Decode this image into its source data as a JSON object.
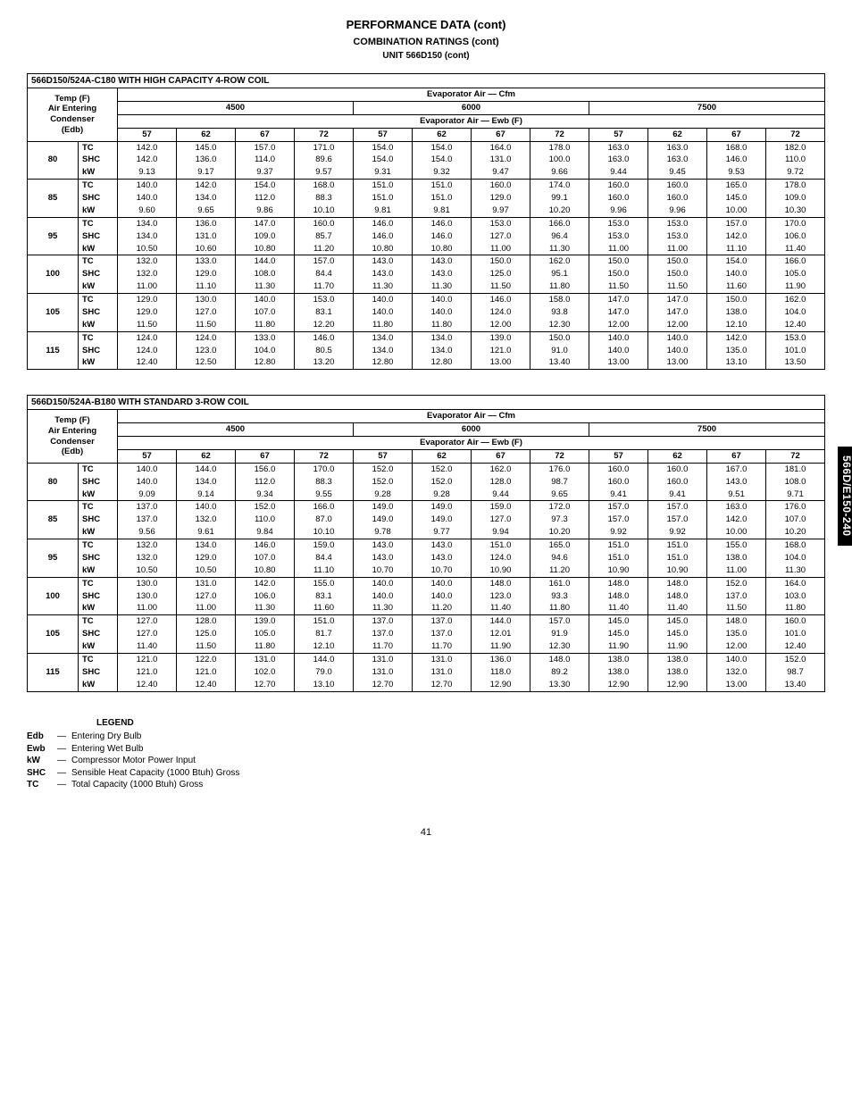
{
  "header": {
    "page_title": "PERFORMANCE DATA (cont)",
    "subtitle": "COMBINATION RATINGS (cont)",
    "unit_title": "UNIT 566D150 (cont)"
  },
  "side_tab": "566D/E150-240",
  "page_number": "41",
  "legend": {
    "title": "LEGEND",
    "items": [
      {
        "key": "Edb",
        "desc": "Entering Dry Bulb"
      },
      {
        "key": "Ewb",
        "desc": "Entering Wet Bulb"
      },
      {
        "key": "kW",
        "desc": "Compressor Motor Power Input"
      },
      {
        "key": "SHC",
        "desc": "Sensible Heat Capacity (1000 Btuh) Gross"
      },
      {
        "key": "TC",
        "desc": "Total Capacity (1000 Btuh) Gross"
      }
    ]
  },
  "common_headers": {
    "left_header": "Temp (F)\nAir Entering\nCondenser\n(Edb)",
    "evap_air_cfm": "Evaporator Air — Cfm",
    "evap_air_ewb": "Evaporator Air — Ewb (F)",
    "cfm_groups": [
      "4500",
      "6000",
      "7500"
    ],
    "ewb_cols": [
      "57",
      "62",
      "67",
      "72",
      "57",
      "62",
      "67",
      "72",
      "57",
      "62",
      "67",
      "72"
    ],
    "metrics": [
      "TC",
      "SHC",
      "kW"
    ]
  },
  "tables": [
    {
      "label": "566D150/524A-C180 WITH HIGH CAPACITY 4-ROW COIL",
      "rows": [
        {
          "temp": "80",
          "data": [
            [
              "142.0",
              "145.0",
              "157.0",
              "171.0",
              "154.0",
              "154.0",
              "164.0",
              "178.0",
              "163.0",
              "163.0",
              "168.0",
              "182.0"
            ],
            [
              "142.0",
              "136.0",
              "114.0",
              "89.6",
              "154.0",
              "154.0",
              "131.0",
              "100.0",
              "163.0",
              "163.0",
              "146.0",
              "110.0"
            ],
            [
              "9.13",
              "9.17",
              "9.37",
              "9.57",
              "9.31",
              "9.32",
              "9.47",
              "9.66",
              "9.44",
              "9.45",
              "9.53",
              "9.72"
            ]
          ]
        },
        {
          "temp": "85",
          "data": [
            [
              "140.0",
              "142.0",
              "154.0",
              "168.0",
              "151.0",
              "151.0",
              "160.0",
              "174.0",
              "160.0",
              "160.0",
              "165.0",
              "178.0"
            ],
            [
              "140.0",
              "134.0",
              "112.0",
              "88.3",
              "151.0",
              "151.0",
              "129.0",
              "99.1",
              "160.0",
              "160.0",
              "145.0",
              "109.0"
            ],
            [
              "9.60",
              "9.65",
              "9.86",
              "10.10",
              "9.81",
              "9.81",
              "9.97",
              "10.20",
              "9.96",
              "9.96",
              "10.00",
              "10.30"
            ]
          ]
        },
        {
          "temp": "95",
          "data": [
            [
              "134.0",
              "136.0",
              "147.0",
              "160.0",
              "146.0",
              "146.0",
              "153.0",
              "166.0",
              "153.0",
              "153.0",
              "157.0",
              "170.0"
            ],
            [
              "134.0",
              "131.0",
              "109.0",
              "85.7",
              "146.0",
              "146.0",
              "127.0",
              "96.4",
              "153.0",
              "153.0",
              "142.0",
              "106.0"
            ],
            [
              "10.50",
              "10.60",
              "10.80",
              "11.20",
              "10.80",
              "10.80",
              "11.00",
              "11.30",
              "11.00",
              "11.00",
              "11.10",
              "11.40"
            ]
          ]
        },
        {
          "temp": "100",
          "data": [
            [
              "132.0",
              "133.0",
              "144.0",
              "157.0",
              "143.0",
              "143.0",
              "150.0",
              "162.0",
              "150.0",
              "150.0",
              "154.0",
              "166.0"
            ],
            [
              "132.0",
              "129.0",
              "108.0",
              "84.4",
              "143.0",
              "143.0",
              "125.0",
              "95.1",
              "150.0",
              "150.0",
              "140.0",
              "105.0"
            ],
            [
              "11.00",
              "11.10",
              "11.30",
              "11.70",
              "11.30",
              "11.30",
              "11.50",
              "11.80",
              "11.50",
              "11.50",
              "11.60",
              "11.90"
            ]
          ]
        },
        {
          "temp": "105",
          "data": [
            [
              "129.0",
              "130.0",
              "140.0",
              "153.0",
              "140.0",
              "140.0",
              "146.0",
              "158.0",
              "147.0",
              "147.0",
              "150.0",
              "162.0"
            ],
            [
              "129.0",
              "127.0",
              "107.0",
              "83.1",
              "140.0",
              "140.0",
              "124.0",
              "93.8",
              "147.0",
              "147.0",
              "138.0",
              "104.0"
            ],
            [
              "11.50",
              "11.50",
              "11.80",
              "12.20",
              "11.80",
              "11.80",
              "12.00",
              "12.30",
              "12.00",
              "12.00",
              "12.10",
              "12.40"
            ]
          ]
        },
        {
          "temp": "115",
          "data": [
            [
              "124.0",
              "124.0",
              "133.0",
              "146.0",
              "134.0",
              "134.0",
              "139.0",
              "150.0",
              "140.0",
              "140.0",
              "142.0",
              "153.0"
            ],
            [
              "124.0",
              "123.0",
              "104.0",
              "80.5",
              "134.0",
              "134.0",
              "121.0",
              "91.0",
              "140.0",
              "140.0",
              "135.0",
              "101.0"
            ],
            [
              "12.40",
              "12.50",
              "12.80",
              "13.20",
              "12.80",
              "12.80",
              "13.00",
              "13.40",
              "13.00",
              "13.00",
              "13.10",
              "13.50"
            ]
          ]
        }
      ]
    },
    {
      "label": "566D150/524A-B180 WITH STANDARD 3-ROW COIL",
      "rows": [
        {
          "temp": "80",
          "data": [
            [
              "140.0",
              "144.0",
              "156.0",
              "170.0",
              "152.0",
              "152.0",
              "162.0",
              "176.0",
              "160.0",
              "160.0",
              "167.0",
              "181.0"
            ],
            [
              "140.0",
              "134.0",
              "112.0",
              "88.3",
              "152.0",
              "152.0",
              "128.0",
              "98.7",
              "160.0",
              "160.0",
              "143.0",
              "108.0"
            ],
            [
              "9.09",
              "9.14",
              "9.34",
              "9.55",
              "9.28",
              "9.28",
              "9.44",
              "9.65",
              "9.41",
              "9.41",
              "9.51",
              "9.71"
            ]
          ]
        },
        {
          "temp": "85",
          "data": [
            [
              "137.0",
              "140.0",
              "152.0",
              "166.0",
              "149.0",
              "149.0",
              "159.0",
              "172.0",
              "157.0",
              "157.0",
              "163.0",
              "176.0"
            ],
            [
              "137.0",
              "132.0",
              "110.0",
              "87.0",
              "149.0",
              "149.0",
              "127.0",
              "97.3",
              "157.0",
              "157.0",
              "142.0",
              "107.0"
            ],
            [
              "9.56",
              "9.61",
              "9.84",
              "10.10",
              "9.78",
              "9.77",
              "9.94",
              "10.20",
              "9.92",
              "9.92",
              "10.00",
              "10.20"
            ]
          ]
        },
        {
          "temp": "95",
          "data": [
            [
              "132.0",
              "134.0",
              "146.0",
              "159.0",
              "143.0",
              "143.0",
              "151.0",
              "165.0",
              "151.0",
              "151.0",
              "155.0",
              "168.0"
            ],
            [
              "132.0",
              "129.0",
              "107.0",
              "84.4",
              "143.0",
              "143.0",
              "124.0",
              "94.6",
              "151.0",
              "151.0",
              "138.0",
              "104.0"
            ],
            [
              "10.50",
              "10.50",
              "10.80",
              "11.10",
              "10.70",
              "10.70",
              "10.90",
              "11.20",
              "10.90",
              "10.90",
              "11.00",
              "11.30"
            ]
          ]
        },
        {
          "temp": "100",
          "data": [
            [
              "130.0",
              "131.0",
              "142.0",
              "155.0",
              "140.0",
              "140.0",
              "148.0",
              "161.0",
              "148.0",
              "148.0",
              "152.0",
              "164.0"
            ],
            [
              "130.0",
              "127.0",
              "106.0",
              "83.1",
              "140.0",
              "140.0",
              "123.0",
              "93.3",
              "148.0",
              "148.0",
              "137.0",
              "103.0"
            ],
            [
              "11.00",
              "11.00",
              "11.30",
              "11.60",
              "11.30",
              "11.20",
              "11.40",
              "11.80",
              "11.40",
              "11.40",
              "11.50",
              "11.80"
            ]
          ]
        },
        {
          "temp": "105",
          "data": [
            [
              "127.0",
              "128.0",
              "139.0",
              "151.0",
              "137.0",
              "137.0",
              "144.0",
              "157.0",
              "145.0",
              "145.0",
              "148.0",
              "160.0"
            ],
            [
              "127.0",
              "125.0",
              "105.0",
              "81.7",
              "137.0",
              "137.0",
              "12.01",
              "91.9",
              "145.0",
              "145.0",
              "135.0",
              "101.0"
            ],
            [
              "11.40",
              "11.50",
              "11.80",
              "12.10",
              "11.70",
              "11.70",
              "11.90",
              "12.30",
              "11.90",
              "11.90",
              "12.00",
              "12.40"
            ]
          ]
        },
        {
          "temp": "115",
          "data": [
            [
              "121.0",
              "122.0",
              "131.0",
              "144.0",
              "131.0",
              "131.0",
              "136.0",
              "148.0",
              "138.0",
              "138.0",
              "140.0",
              "152.0"
            ],
            [
              "121.0",
              "121.0",
              "102.0",
              "79.0",
              "131.0",
              "131.0",
              "118.0",
              "89.2",
              "138.0",
              "138.0",
              "132.0",
              "98.7"
            ],
            [
              "12.40",
              "12.40",
              "12.70",
              "13.10",
              "12.70",
              "12.70",
              "12.90",
              "13.30",
              "12.90",
              "12.90",
              "13.00",
              "13.40"
            ]
          ]
        }
      ]
    }
  ]
}
